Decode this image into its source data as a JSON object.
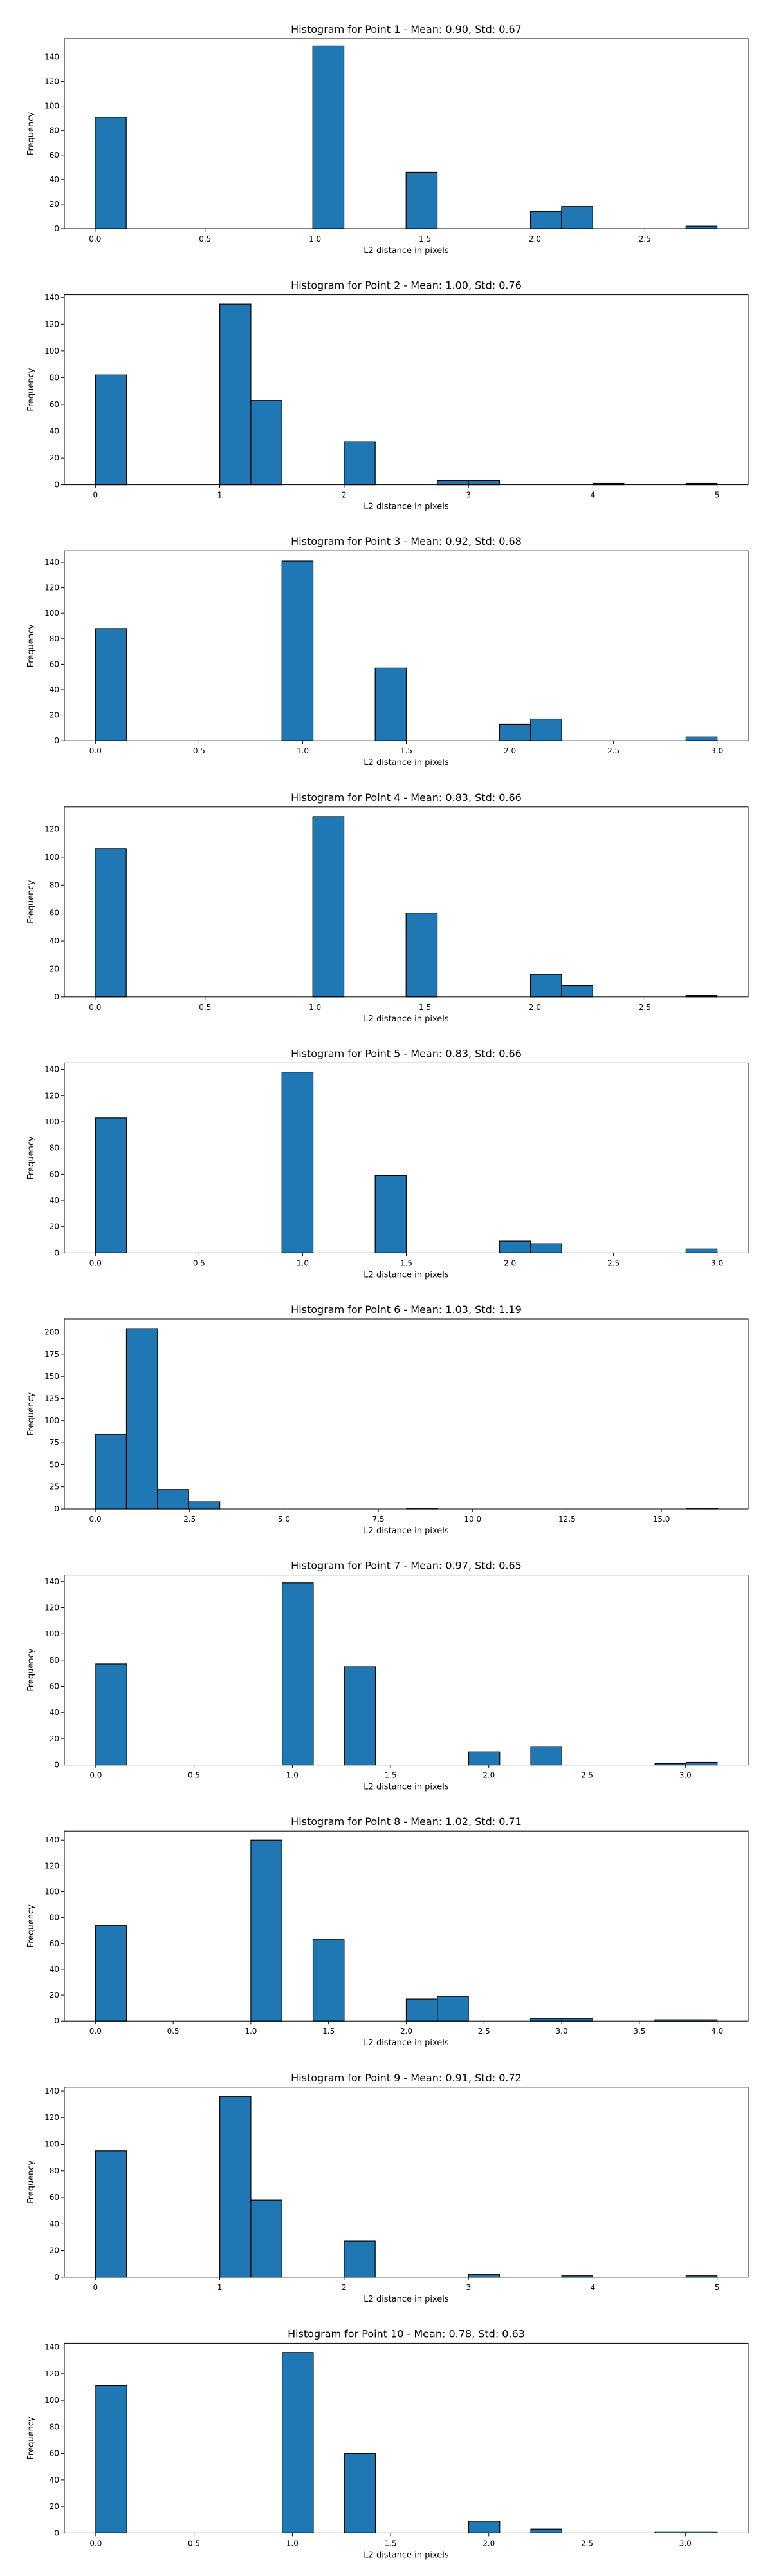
{
  "figure": {
    "bar_color": "#1f77b4",
    "edge_color": "#000000",
    "background": "#ffffff"
  },
  "chart_data": [
    {
      "type": "bar",
      "title": "Histogram for Point 1 - Mean: 0.90, Std: 0.67",
      "xlabel": "L2 distance in pixels",
      "ylabel": "Frequency",
      "xlim": [
        -0.14,
        2.97
      ],
      "ylim": [
        0,
        155
      ],
      "xticks": [
        0.0,
        0.5,
        1.0,
        1.5,
        2.0,
        2.5
      ],
      "xtick_labels": [
        "0.0",
        "0.5",
        "1.0",
        "1.5",
        "2.0",
        "2.5"
      ],
      "yticks": [
        0,
        20,
        40,
        60,
        80,
        100,
        120,
        140
      ],
      "bin_edges": [
        0.0,
        0.1414,
        0.2828,
        0.4243,
        0.5657,
        0.7071,
        0.8485,
        0.9899,
        1.1314,
        1.2728,
        1.4142,
        1.5556,
        1.6971,
        1.8385,
        1.9799,
        2.1213,
        2.2627,
        2.4042,
        2.5456,
        2.687,
        2.8284
      ],
      "counts": [
        91,
        0,
        0,
        0,
        0,
        0,
        0,
        149,
        0,
        0,
        46,
        0,
        0,
        0,
        14,
        18,
        0,
        0,
        0,
        2
      ]
    },
    {
      "type": "bar",
      "title": "Histogram for Point 2 - Mean: 1.00, Std: 0.76",
      "xlabel": "L2 distance in pixels",
      "ylabel": "Frequency",
      "xlim": [
        -0.25,
        5.25
      ],
      "ylim": [
        0,
        142
      ],
      "xticks": [
        0,
        1,
        2,
        3,
        4,
        5
      ],
      "xtick_labels": [
        "0",
        "1",
        "2",
        "3",
        "4",
        "5"
      ],
      "yticks": [
        0,
        20,
        40,
        60,
        80,
        100,
        120,
        140
      ],
      "bin_edges": [
        0.0,
        0.25,
        0.5,
        0.75,
        1.0,
        1.25,
        1.5,
        1.75,
        2.0,
        2.25,
        2.5,
        2.75,
        3.0,
        3.25,
        3.5,
        3.75,
        4.0,
        4.25,
        4.5,
        4.75,
        5.0
      ],
      "counts": [
        82,
        0,
        0,
        0,
        135,
        63,
        0,
        0,
        32,
        0,
        0,
        3,
        3,
        0,
        0,
        0,
        1,
        0,
        0,
        1
      ]
    },
    {
      "type": "bar",
      "title": "Histogram for Point 3 - Mean: 0.92, Std: 0.68",
      "xlabel": "L2 distance in pixels",
      "ylabel": "Frequency",
      "xlim": [
        -0.15,
        3.15
      ],
      "ylim": [
        0,
        149
      ],
      "xticks": [
        0.0,
        0.5,
        1.0,
        1.5,
        2.0,
        2.5,
        3.0
      ],
      "xtick_labels": [
        "0.0",
        "0.5",
        "1.0",
        "1.5",
        "2.0",
        "2.5",
        "3.0"
      ],
      "yticks": [
        0,
        20,
        40,
        60,
        80,
        100,
        120,
        140
      ],
      "bin_edges": [
        0.0,
        0.15,
        0.3,
        0.45,
        0.6,
        0.75,
        0.9,
        1.05,
        1.2,
        1.35,
        1.5,
        1.65,
        1.8,
        1.95,
        2.1,
        2.25,
        2.4,
        2.55,
        2.7,
        2.85,
        3.0
      ],
      "counts": [
        88,
        0,
        0,
        0,
        0,
        0,
        141,
        0,
        0,
        57,
        0,
        0,
        0,
        13,
        17,
        0,
        0,
        0,
        0,
        3
      ]
    },
    {
      "type": "bar",
      "title": "Histogram for Point 4 - Mean: 0.83, Std: 0.66",
      "xlabel": "L2 distance in pixels",
      "ylabel": "Frequency",
      "xlim": [
        -0.14,
        2.97
      ],
      "ylim": [
        0,
        136
      ],
      "xticks": [
        0.0,
        0.5,
        1.0,
        1.5,
        2.0,
        2.5
      ],
      "xtick_labels": [
        "0.0",
        "0.5",
        "1.0",
        "1.5",
        "2.0",
        "2.5"
      ],
      "yticks": [
        0,
        20,
        40,
        60,
        80,
        100,
        120
      ],
      "bin_edges": [
        0.0,
        0.1414,
        0.2828,
        0.4243,
        0.5657,
        0.7071,
        0.8485,
        0.9899,
        1.1314,
        1.2728,
        1.4142,
        1.5556,
        1.6971,
        1.8385,
        1.9799,
        2.1213,
        2.2627,
        2.4042,
        2.5456,
        2.687,
        2.8284
      ],
      "counts": [
        106,
        0,
        0,
        0,
        0,
        0,
        0,
        129,
        0,
        0,
        60,
        0,
        0,
        0,
        16,
        8,
        0,
        0,
        0,
        1
      ]
    },
    {
      "type": "bar",
      "title": "Histogram for Point 5 - Mean: 0.83, Std: 0.66",
      "xlabel": "L2 distance in pixels",
      "ylabel": "Frequency",
      "xlim": [
        -0.15,
        3.15
      ],
      "ylim": [
        0,
        145
      ],
      "xticks": [
        0.0,
        0.5,
        1.0,
        1.5,
        2.0,
        2.5,
        3.0
      ],
      "xtick_labels": [
        "0.0",
        "0.5",
        "1.0",
        "1.5",
        "2.0",
        "2.5",
        "3.0"
      ],
      "yticks": [
        0,
        20,
        40,
        60,
        80,
        100,
        120,
        140
      ],
      "bin_edges": [
        0.0,
        0.15,
        0.3,
        0.45,
        0.6,
        0.75,
        0.9,
        1.05,
        1.2,
        1.35,
        1.5,
        1.65,
        1.8,
        1.95,
        2.1,
        2.25,
        2.4,
        2.55,
        2.7,
        2.85,
        3.0
      ],
      "counts": [
        103,
        0,
        0,
        0,
        0,
        0,
        138,
        0,
        0,
        59,
        0,
        0,
        0,
        9,
        7,
        0,
        0,
        0,
        0,
        3
      ]
    },
    {
      "type": "bar",
      "title": "Histogram for Point 6 - Mean: 1.03, Std: 1.19",
      "xlabel": "L2 distance in pixels",
      "ylabel": "Frequency",
      "xlim": [
        -0.82,
        17.3
      ],
      "ylim": [
        0,
        215
      ],
      "xticks": [
        0.0,
        2.5,
        5.0,
        7.5,
        10.0,
        12.5,
        15.0
      ],
      "xtick_labels": [
        "0.0",
        "2.5",
        "5.0",
        "7.5",
        "10.0",
        "12.5",
        "15.0"
      ],
      "yticks": [
        0,
        25,
        50,
        75,
        100,
        125,
        150,
        175,
        200
      ],
      "bin_edges": [
        0.0,
        0.8246,
        1.6492,
        2.4739,
        3.2985,
        4.1231,
        4.9477,
        5.7724,
        6.597,
        7.4216,
        8.2462,
        9.0709,
        9.8955,
        10.7201,
        11.5447,
        12.3693,
        13.194,
        14.0186,
        14.8432,
        15.6678,
        16.4924
      ],
      "counts": [
        84,
        204,
        22,
        8,
        0,
        0,
        0,
        0,
        0,
        0,
        1,
        0,
        0,
        0,
        0,
        0,
        0,
        0,
        0,
        1
      ]
    },
    {
      "type": "bar",
      "title": "Histogram for Point 7 - Mean: 0.97, Std: 0.65",
      "xlabel": "L2 distance in pixels",
      "ylabel": "Frequency",
      "xlim": [
        -0.16,
        3.32
      ],
      "ylim": [
        0,
        145
      ],
      "xticks": [
        0.0,
        0.5,
        1.0,
        1.5,
        2.0,
        2.5,
        3.0
      ],
      "xtick_labels": [
        "0.0",
        "0.5",
        "1.0",
        "1.5",
        "2.0",
        "2.5",
        "3.0"
      ],
      "yticks": [
        0,
        20,
        40,
        60,
        80,
        100,
        120,
        140
      ],
      "bin_edges": [
        0.0,
        0.1581,
        0.3162,
        0.4743,
        0.6325,
        0.7906,
        0.9487,
        1.1068,
        1.2649,
        1.423,
        1.5811,
        1.7393,
        1.8974,
        2.0555,
        2.2136,
        2.3717,
        2.5298,
        2.6879,
        2.846,
        3.0042,
        3.1623
      ],
      "counts": [
        77,
        0,
        0,
        0,
        0,
        0,
        139,
        0,
        75,
        0,
        0,
        0,
        10,
        0,
        14,
        0,
        0,
        0,
        1,
        2
      ]
    },
    {
      "type": "bar",
      "title": "Histogram for Point 8 - Mean: 1.02, Std: 0.71",
      "xlabel": "L2 distance in pixels",
      "ylabel": "Frequency",
      "xlim": [
        -0.2,
        4.2
      ],
      "ylim": [
        0,
        147
      ],
      "xticks": [
        0.0,
        0.5,
        1.0,
        1.5,
        2.0,
        2.5,
        3.0,
        3.5,
        4.0
      ],
      "xtick_labels": [
        "0.0",
        "0.5",
        "1.0",
        "1.5",
        "2.0",
        "2.5",
        "3.0",
        "3.5",
        "4.0"
      ],
      "yticks": [
        0,
        20,
        40,
        60,
        80,
        100,
        120,
        140
      ],
      "bin_edges": [
        0.0,
        0.2,
        0.4,
        0.6,
        0.8,
        1.0,
        1.2,
        1.4,
        1.6,
        1.8,
        2.0,
        2.2,
        2.4,
        2.6,
        2.8,
        3.0,
        3.2,
        3.4,
        3.6,
        3.8,
        4.0
      ],
      "counts": [
        74,
        0,
        0,
        0,
        0,
        140,
        0,
        63,
        0,
        0,
        17,
        19,
        0,
        0,
        2,
        2,
        0,
        0,
        1,
        1
      ]
    },
    {
      "type": "bar",
      "title": "Histogram for Point 9 - Mean: 0.91, Std: 0.72",
      "xlabel": "L2 distance in pixels",
      "ylabel": "Frequency",
      "xlim": [
        -0.25,
        5.25
      ],
      "ylim": [
        0,
        143
      ],
      "xticks": [
        0,
        1,
        2,
        3,
        4,
        5
      ],
      "xtick_labels": [
        "0",
        "1",
        "2",
        "3",
        "4",
        "5"
      ],
      "yticks": [
        0,
        20,
        40,
        60,
        80,
        100,
        120,
        140
      ],
      "bin_edges": [
        0.0,
        0.25,
        0.5,
        0.75,
        1.0,
        1.25,
        1.5,
        1.75,
        2.0,
        2.25,
        2.5,
        2.75,
        3.0,
        3.25,
        3.5,
        3.75,
        4.0,
        4.25,
        4.5,
        4.75,
        5.0
      ],
      "counts": [
        95,
        0,
        0,
        0,
        136,
        58,
        0,
        0,
        27,
        0,
        0,
        0,
        2,
        0,
        0,
        1,
        0,
        0,
        0,
        1
      ]
    },
    {
      "type": "bar",
      "title": "Histogram for Point 10 - Mean: 0.78, Std: 0.63",
      "xlabel": "L2 distance in pixels",
      "ylabel": "Frequency",
      "xlim": [
        -0.16,
        3.32
      ],
      "ylim": [
        0,
        143
      ],
      "xticks": [
        0.0,
        0.5,
        1.0,
        1.5,
        2.0,
        2.5,
        3.0
      ],
      "xtick_labels": [
        "0.0",
        "0.5",
        "1.0",
        "1.5",
        "2.0",
        "2.5",
        "3.0"
      ],
      "yticks": [
        0,
        20,
        40,
        60,
        80,
        100,
        120,
        140
      ],
      "bin_edges": [
        0.0,
        0.1581,
        0.3162,
        0.4743,
        0.6325,
        0.7906,
        0.9487,
        1.1068,
        1.2649,
        1.423,
        1.5811,
        1.7393,
        1.8974,
        2.0555,
        2.2136,
        2.3717,
        2.5298,
        2.6879,
        2.846,
        3.0042,
        3.1623
      ],
      "counts": [
        111,
        0,
        0,
        0,
        0,
        0,
        136,
        0,
        60,
        0,
        0,
        0,
        9,
        0,
        3,
        0,
        0,
        0,
        1,
        1
      ]
    }
  ]
}
